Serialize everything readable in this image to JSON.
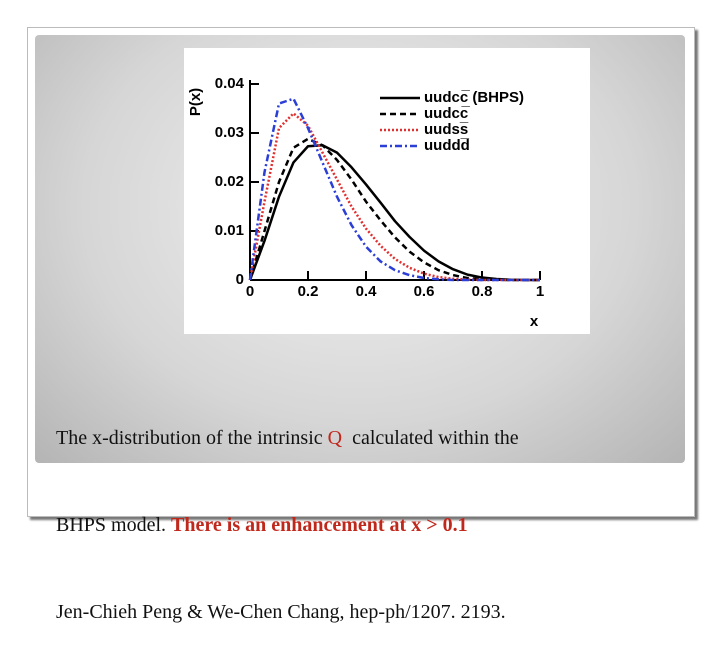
{
  "chart_data": {
    "type": "line",
    "xlabel": "x",
    "ylabel": "P(x)",
    "x": [
      0,
      0.05,
      0.1,
      0.15,
      0.2,
      0.25,
      0.3,
      0.35,
      0.4,
      0.45,
      0.5,
      0.55,
      0.6,
      0.65,
      0.7,
      0.75,
      0.8,
      0.85,
      0.9,
      0.95,
      1
    ],
    "xlim": [
      0,
      1
    ],
    "xticks": [
      0,
      0.2,
      0.4,
      0.6,
      0.8,
      1
    ],
    "ylim": [
      0,
      0.04
    ],
    "yticks": [
      0,
      0.01,
      0.02,
      0.03,
      0.04
    ],
    "legend": "upper right",
    "series": [
      {
        "name": "uudcc̅ (BHPS)",
        "color": "#000000",
        "style": "solid",
        "values": [
          0,
          0.008,
          0.017,
          0.024,
          0.0273,
          0.0275,
          0.026,
          0.023,
          0.0195,
          0.0158,
          0.012,
          0.0088,
          0.006,
          0.0038,
          0.0022,
          0.0011,
          0.0005,
          0.0002,
          5e-05,
          0,
          0
        ]
      },
      {
        "name": "uudcc̅",
        "color": "#000000",
        "style": "dashed",
        "values": [
          0,
          0.01,
          0.02,
          0.027,
          0.0288,
          0.0275,
          0.0245,
          0.0205,
          0.016,
          0.0122,
          0.0087,
          0.0058,
          0.0036,
          0.002,
          0.001,
          0.0004,
          0.00015,
          5e-05,
          0,
          0,
          0
        ]
      },
      {
        "name": "uudss̅",
        "color": "#e03030",
        "style": "dotted",
        "values": [
          0,
          0.016,
          0.031,
          0.034,
          0.0315,
          0.026,
          0.0205,
          0.015,
          0.0105,
          0.007,
          0.0043,
          0.0025,
          0.0013,
          0.0006,
          0.00025,
          0.0001,
          0,
          0,
          0,
          0,
          0
        ]
      },
      {
        "name": "uuddd̅",
        "color": "#2b3fd6",
        "style": "dashdot",
        "values": [
          0,
          0.022,
          0.036,
          0.037,
          0.031,
          0.024,
          0.017,
          0.0112,
          0.0068,
          0.0038,
          0.002,
          0.001,
          0.0004,
          0.00015,
          0,
          0,
          0,
          0,
          0,
          0,
          0
        ]
      }
    ]
  },
  "caption": [
    [
      "The x-distribution of the intrinsic ",
      "Q",
      "  calculated within the"
    ],
    [
      "BHPS model. ",
      "There is an enhancement at x > 0.1"
    ],
    [
      "Jen-Chieh Peng & We-Chen Chang, hep-ph/1207. 2193."
    ]
  ]
}
